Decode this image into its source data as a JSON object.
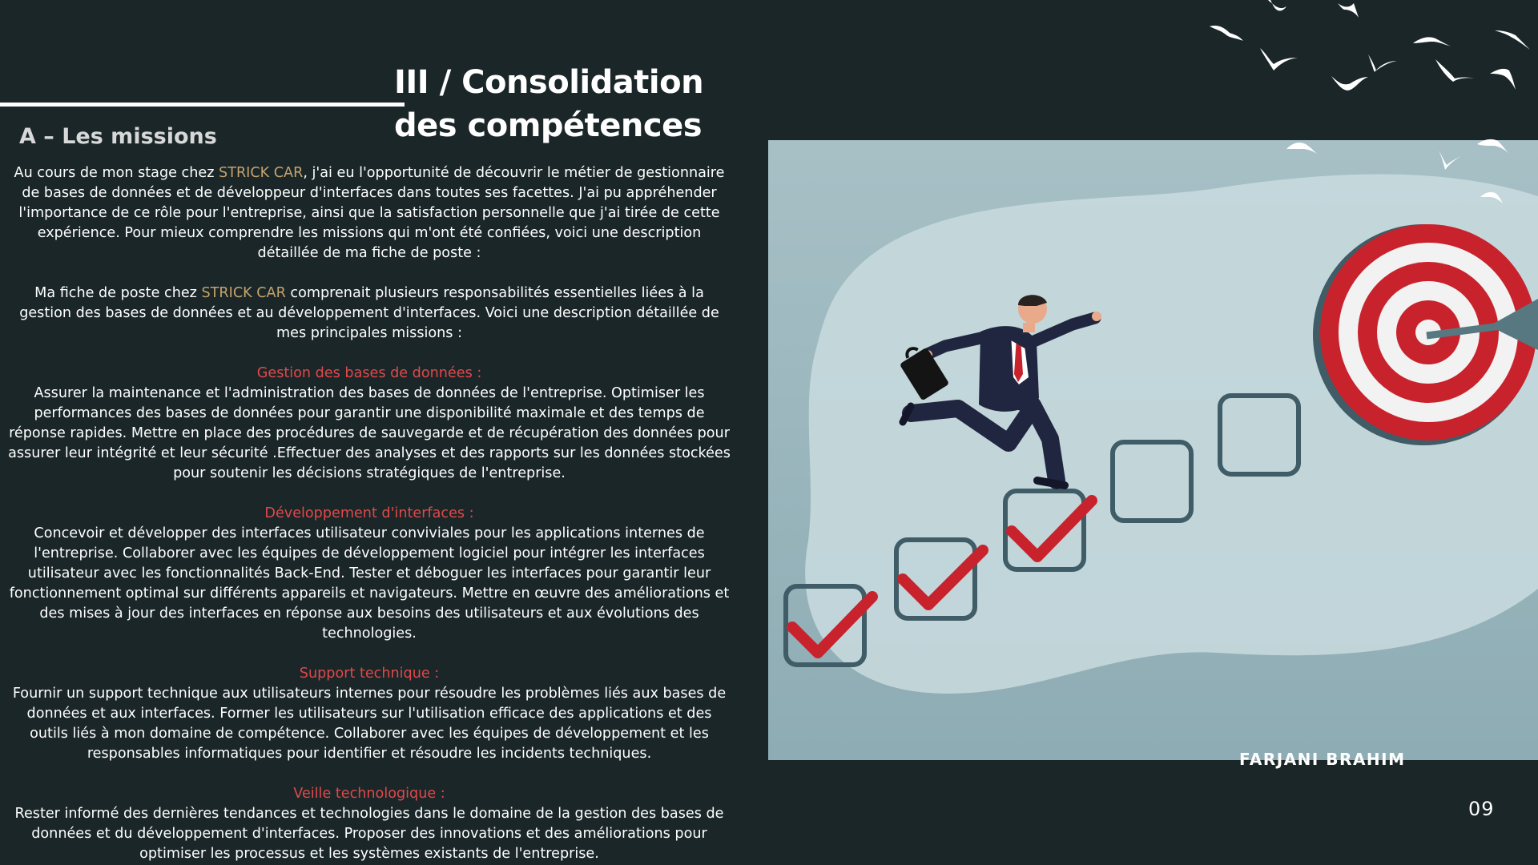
{
  "title": {
    "line1": "III / Consolidation",
    "line2": "des compétences"
  },
  "section_heading": "A – Les missions",
  "intro": {
    "p1_before": "Au cours de mon stage chez ",
    "company": "STRICK CAR",
    "p1_after": ", j'ai eu l'opportunité de découvrir le métier de gestionnaire de bases de données et de développeur d'interfaces dans toutes ses facettes. J'ai pu appréhender l'importance de ce rôle pour l'entreprise, ainsi que la satisfaction personnelle que j'ai tirée de cette expérience. Pour mieux comprendre les missions qui m'ont été confiées, voici une description détaillée de ma fiche de poste :",
    "p2_before": "Ma fiche de poste chez ",
    "p2_after": " comprenait plusieurs responsabilités essentielles liées à la gestion des bases de données et au développement d'interfaces. Voici une description détaillée de mes principales missions :"
  },
  "missions": [
    {
      "title": "Gestion des bases de données :",
      "text": "Assurer la maintenance et l'administration des bases de données de l'entreprise. Optimiser les performances des bases de données pour garantir une disponibilité maximale et des temps de réponse rapides. Mettre en place des procédures de sauvegarde et de récupération des données pour assurer leur intégrité et leur sécurité .Effectuer des analyses et des rapports sur les données stockées pour soutenir les décisions stratégiques de l'entreprise."
    },
    {
      "title": "Développement d'interfaces :",
      "text": "Concevoir et développer des interfaces utilisateur conviviales pour les applications internes de l'entreprise. Collaborer avec les équipes de développement logiciel pour intégrer les interfaces utilisateur avec les fonctionnalités Back-End. Tester et déboguer les interfaces pour garantir leur fonctionnement optimal sur différents appareils et navigateurs. Mettre en œuvre des améliorations et des mises à jour des interfaces en réponse aux besoins des utilisateurs et aux évolutions des technologies."
    },
    {
      "title": "Support technique :",
      "text": "Fournir un support technique aux utilisateurs internes pour résoudre les problèmes liés aux bases de données et aux interfaces. Former les utilisateurs sur l'utilisation efficace des applications et des outils liés à mon domaine de compétence. Collaborer avec les équipes de développement et les responsables informatiques pour identifier et résoudre les incidents techniques."
    },
    {
      "title": "Veille technologique :",
      "text": "Rester informé des dernières tendances et technologies dans le domaine de la gestion des bases de données et du développement d'interfaces. Proposer des innovations et des améliorations pour optimiser les processus et les systèmes existants de l'entreprise."
    }
  ],
  "author": "FARJANI BRAHIM",
  "page_number": "09",
  "colors": {
    "background": "#1a2628",
    "highlight": "#c6a46e",
    "subheading": "#e0494b",
    "illustration_bg": "#a9c4ca",
    "target_red": "#c8232c",
    "checkbox": "#3f5c67"
  },
  "icons": [
    "bird-icon",
    "businessman-icon",
    "briefcase-icon",
    "checkbox-icon",
    "check-mark-icon",
    "target-icon",
    "arrow-icon"
  ]
}
